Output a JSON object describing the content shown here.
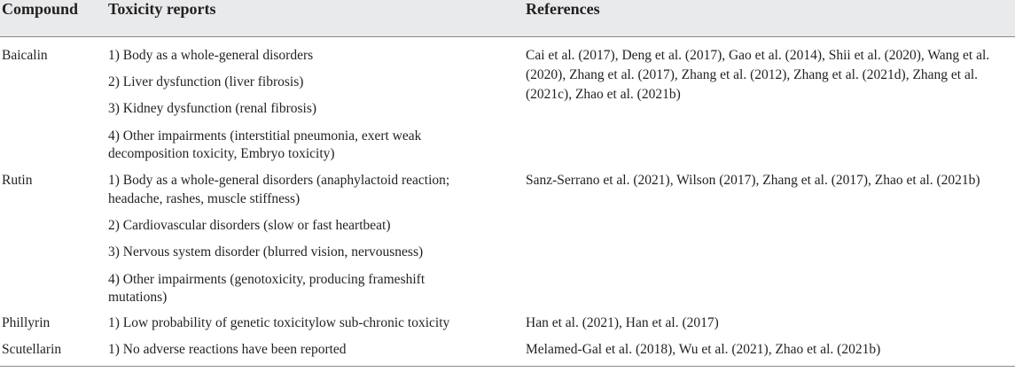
{
  "table": {
    "headers": [
      "Compound",
      "Toxicity reports",
      "References"
    ],
    "rows": [
      {
        "compound": "Baicalin",
        "reports": [
          [
            "1) Body as a whole-general disorders"
          ],
          [
            "2) Liver dysfunction (liver fibrosis)"
          ],
          [
            "3) Kidney dysfunction (renal fibrosis)"
          ],
          [
            "4) Other impairments (interstitial pneumonia, exert weak",
            "decomposition toxicity, Embryo toxicity)"
          ]
        ],
        "references": [
          "Cai et al. (2017), Deng et al. (2017), Gao et al. (2014), Shii et al. (2020), Wang et al.",
          "(2020), Zhang et al. (2017), Zhang et al. (2012), Zhang et al. (2021d), Zhang et al.",
          "(2021c), Zhao et al. (2021b)"
        ]
      },
      {
        "compound": "Rutin",
        "reports": [
          [
            "1) Body as a whole-general disorders (anaphylactoid reaction;",
            "headache, rashes, muscle stiffness)"
          ],
          [
            "2) Cardiovascular disorders (slow or fast heartbeat)"
          ],
          [
            "3) Nervous system disorder (blurred vision, nervousness)"
          ],
          [
            "4) Other impairments (genotoxicity, producing frameshift",
            "mutations)"
          ]
        ],
        "references": [
          "Sanz-Serrano et al. (2021), Wilson (2017), Zhang et al. (2017), Zhao et al. (2021b)"
        ]
      },
      {
        "compound": "Phillyrin",
        "reports": [
          [
            "1) Low probability of genetic toxicitylow sub-chronic toxicity"
          ]
        ],
        "references": [
          "Han et al. (2021), Han et al. (2017)"
        ]
      },
      {
        "compound": "Scutellarin",
        "reports": [
          [
            "1) No adverse reactions have been reported"
          ]
        ],
        "references": [
          "Melamed-Gal et al. (2018), Wu et al. (2021), Zhao et al. (2021b)"
        ]
      }
    ]
  }
}
